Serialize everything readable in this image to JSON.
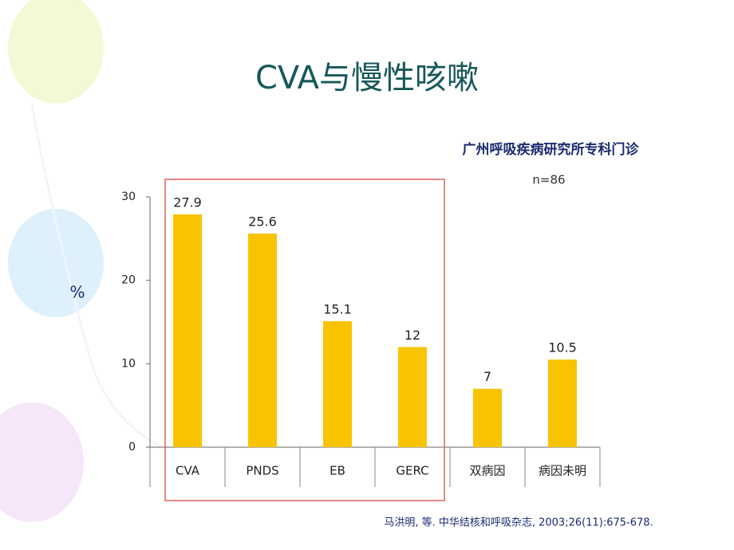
{
  "chart_data": {
    "type": "bar",
    "title": "CVA与慢性咳嗽",
    "subtitle": "广州呼吸疾病研究所专科门诊",
    "sample_size": "n=86",
    "y_label": "%",
    "source": "马洪明, 等.  中华结核和呼吸杂志, 2003;26(11):675-678.",
    "categories": [
      "CVA",
      "PNDS",
      "EB",
      "GERC",
      "双病因",
      "病因未明"
    ],
    "values": [
      27.9,
      25.6,
      15.1,
      12,
      7,
      10.5
    ],
    "color": "#f8c400",
    "ylim": [
      0,
      30
    ],
    "yticks": [
      0,
      10,
      20,
      30
    ],
    "grid": false
  }
}
